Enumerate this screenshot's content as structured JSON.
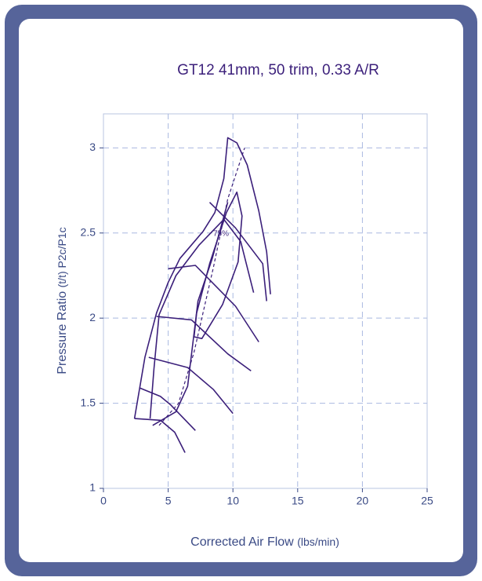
{
  "chart_data": {
    "type": "line",
    "title": "GT12 41mm, 50 trim, 0.33 A/R",
    "xlabel": "Corrected Air Flow",
    "xlabel_unit": "(lbs/min)",
    "ylabel": "Pressure Ratio",
    "ylabel_unit": "(t/t) P2c/P1c",
    "annotation": "75%",
    "xlim": [
      0,
      25
    ],
    "ylim": [
      1,
      3.2
    ],
    "xticks": [
      0,
      5,
      10,
      15,
      20,
      25
    ],
    "yticks": [
      1,
      1.5,
      2,
      2.5,
      3
    ],
    "grid": true,
    "color": "#3b1f7a",
    "series": [
      {
        "x": [
          2.4,
          3.2,
          4.1,
          5.0,
          5.9,
          7.7,
          8.6,
          9.3,
          9.6,
          10.3,
          11.1,
          12.0,
          12.6,
          12.9
        ],
        "values": [
          1.41,
          1.77,
          2.03,
          2.21,
          2.35,
          2.51,
          2.62,
          2.82,
          3.06,
          3.03,
          2.9,
          2.63,
          2.39,
          2.14
        ]
      },
      {
        "x": [
          2.4,
          4.4,
          5.5,
          6.3
        ],
        "values": [
          1.41,
          1.4,
          1.33,
          1.21
        ]
      },
      {
        "x": [
          2.8,
          4.4,
          5.2,
          7.1
        ],
        "values": [
          1.59,
          1.54,
          1.49,
          1.34
        ]
      },
      {
        "x": [
          3.5,
          6.5,
          8.5,
          10.0
        ],
        "values": [
          1.77,
          1.71,
          1.58,
          1.44
        ]
      },
      {
        "x": [
          4.1,
          6.8,
          9.6,
          11.4
        ],
        "values": [
          2.01,
          1.99,
          1.79,
          1.69
        ]
      },
      {
        "x": [
          5.0,
          7.1,
          10.2,
          12.0
        ],
        "values": [
          2.29,
          2.31,
          2.07,
          1.86
        ]
      },
      {
        "x": [
          8.2,
          10.2,
          12.3,
          12.6
        ],
        "values": [
          2.68,
          2.53,
          2.32,
          2.1
        ]
      },
      {
        "x": [
          7.0,
          7.2,
          8.2,
          9.5,
          10.3,
          10.7,
          10.4,
          9.2,
          7.6,
          7.0
        ],
        "values": [
          1.89,
          2.03,
          2.32,
          2.62,
          2.74,
          2.6,
          2.33,
          2.08,
          1.88,
          1.89
        ]
      },
      {
        "x": [
          3.6,
          3.9,
          4.3,
          5.6,
          7.4,
          9.3,
          10.6,
          11.6
        ],
        "values": [
          1.41,
          1.7,
          2.02,
          2.25,
          2.43,
          2.58,
          2.45,
          2.15
        ]
      },
      {
        "x": [
          3.8,
          5.6,
          6.5,
          6.9,
          7.3,
          8.4,
          9.6
        ],
        "values": [
          1.37,
          1.45,
          1.6,
          1.85,
          2.1,
          2.35,
          2.68
        ]
      },
      {
        "x": [
          4.3,
          5.8,
          7.0,
          8.5,
          9.6,
          10.9
        ],
        "values": [
          1.37,
          1.5,
          1.8,
          2.3,
          2.7,
          3.0
        ],
        "style": "dashed"
      }
    ]
  }
}
